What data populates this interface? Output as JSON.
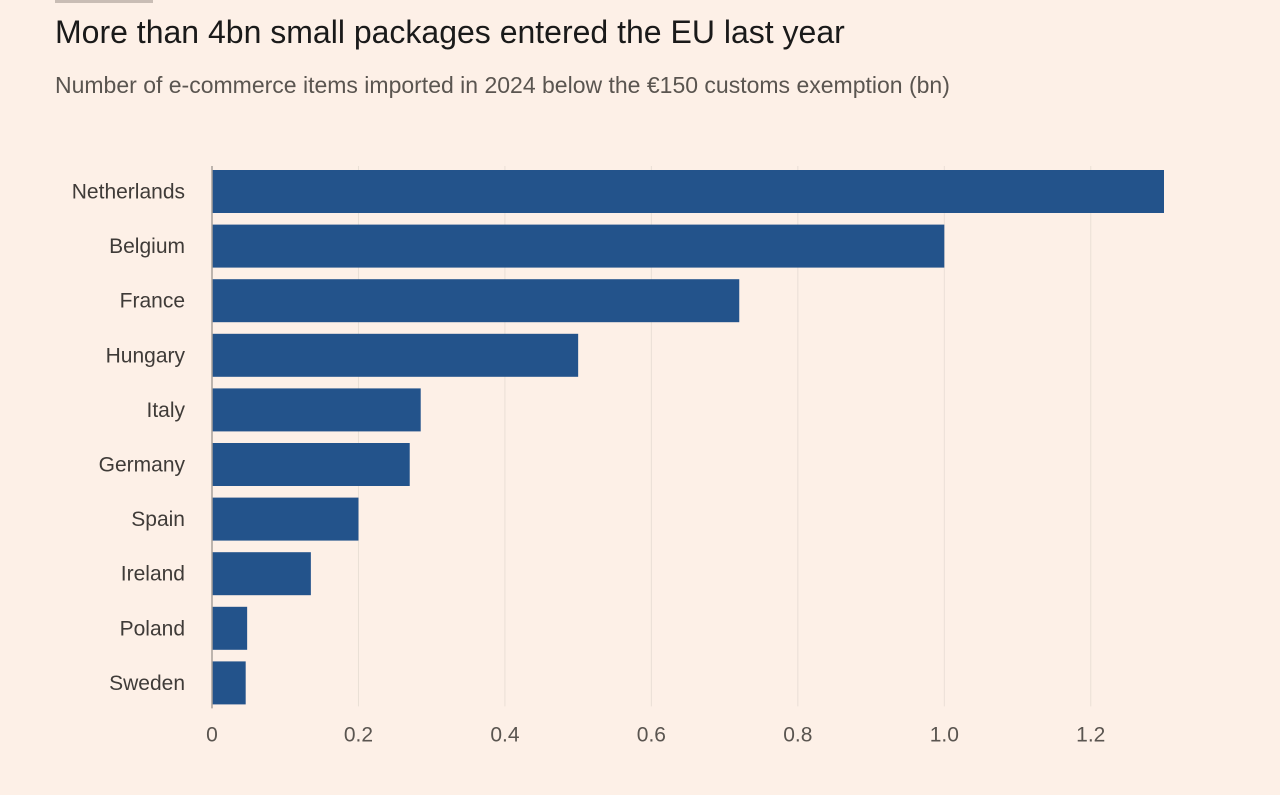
{
  "chart_data": {
    "type": "bar",
    "orientation": "horizontal",
    "title": "More than 4bn small packages entered the EU last year",
    "subtitle": "Number of e-commerce items imported in 2024 below the €150 customs exemption (bn)",
    "categories": [
      "Netherlands",
      "Belgium",
      "France",
      "Hungary",
      "Italy",
      "Germany",
      "Spain",
      "Ireland",
      "Poland",
      "Sweden"
    ],
    "values": [
      1.3,
      1.0,
      0.72,
      0.5,
      0.285,
      0.27,
      0.2,
      0.135,
      0.048,
      0.046
    ],
    "xlim": [
      0,
      1.35
    ],
    "xticks": [
      0,
      0.2,
      0.4,
      0.6,
      0.8,
      1.0,
      1.2
    ],
    "xtick_labels": [
      "0",
      "0.2",
      "0.4",
      "0.6",
      "0.8",
      "1.0",
      "1.2"
    ],
    "xlabel": "",
    "ylabel": "",
    "bar_color": "#23538b",
    "grid": true
  }
}
